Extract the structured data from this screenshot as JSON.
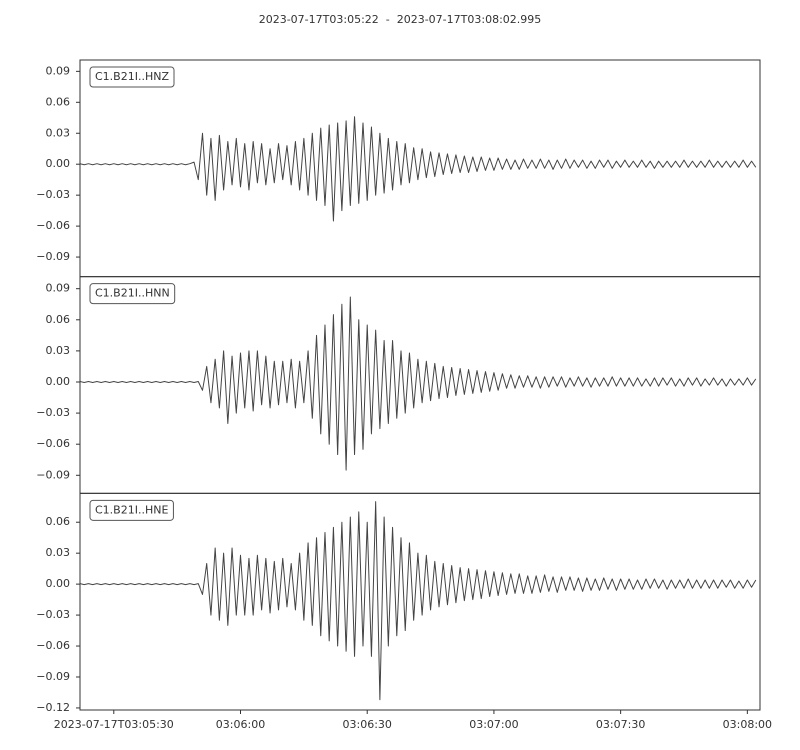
{
  "chart_data": [
    {
      "type": "line",
      "title": "2023-07-17T03:05:22  -  2023-07-17T03:08:02.995",
      "label": "C1.B21I..HNZ",
      "color": "#444444",
      "xlim": [
        0,
        160.995
      ],
      "ylim": [
        -0.109,
        0.101
      ],
      "yticks": [
        {
          "value": 0.09,
          "label": "0.09"
        },
        {
          "value": 0.06,
          "label": "0.06"
        },
        {
          "value": 0.03,
          "label": "0.03"
        },
        {
          "value": 0,
          "label": "0.00"
        },
        {
          "value": -0.03,
          "label": "−0.03"
        },
        {
          "value": -0.06,
          "label": "−0.06"
        },
        {
          "value": -0.09,
          "label": "−0.09"
        }
      ],
      "x": [
        0,
        1,
        2,
        3,
        4,
        5,
        6,
        7,
        8,
        9,
        10,
        11,
        12,
        13,
        14,
        15,
        16,
        17,
        18,
        19,
        20,
        21,
        22,
        23,
        24,
        25,
        26,
        27,
        28,
        29,
        30,
        31,
        32,
        33,
        34,
        35,
        36,
        37,
        38,
        39,
        40,
        41,
        42,
        43,
        44,
        45,
        46,
        47,
        48,
        49,
        50,
        51,
        52,
        53,
        54,
        55,
        56,
        57,
        58,
        59,
        60,
        61,
        62,
        63,
        64,
        65,
        66,
        67,
        68,
        69,
        70,
        71,
        72,
        73,
        74,
        75,
        76,
        77,
        78,
        79,
        80,
        81,
        82,
        83,
        84,
        85,
        86,
        87,
        88,
        89,
        90,
        91,
        92,
        93,
        94,
        95,
        96,
        97,
        98,
        99,
        100,
        101,
        102,
        103,
        104,
        105,
        106,
        107,
        108,
        109,
        110,
        111,
        112,
        113,
        114,
        115,
        116,
        117,
        118,
        119,
        120,
        121,
        122,
        123,
        124,
        125,
        126,
        127,
        128,
        129,
        130,
        131,
        132,
        133,
        134,
        135,
        136,
        137,
        138,
        139,
        140,
        141,
        142,
        143,
        144,
        145,
        146,
        147,
        148,
        149,
        150,
        151,
        152,
        153,
        154,
        155,
        156,
        157,
        158,
        159,
        160
      ],
      "values": [
        0.0005,
        -0.0005,
        0.0005,
        -0.0005,
        0.0005,
        -0.0005,
        0.0005,
        -0.0005,
        0.0005,
        -0.0005,
        0.0005,
        -0.0005,
        0.0005,
        -0.0005,
        0.0005,
        -0.0005,
        0.0005,
        -0.0005,
        0.0005,
        -0.0005,
        0.0005,
        -0.0005,
        0.0005,
        -0.0005,
        0.0005,
        -0.0005,
        0.0005,
        0.002,
        -0.015,
        0.03,
        -0.03,
        0.025,
        -0.035,
        0.028,
        -0.025,
        0.022,
        -0.02,
        0.025,
        -0.022,
        0.02,
        -0.025,
        0.022,
        -0.018,
        0.02,
        -0.02,
        0.015,
        -0.018,
        0.02,
        -0.015,
        0.018,
        -0.02,
        0.022,
        -0.025,
        0.025,
        -0.03,
        0.03,
        -0.035,
        0.035,
        -0.04,
        0.038,
        -0.055,
        0.04,
        -0.045,
        0.042,
        -0.04,
        0.046,
        -0.038,
        0.04,
        -0.035,
        0.036,
        -0.03,
        0.03,
        -0.028,
        0.025,
        -0.025,
        0.022,
        -0.02,
        0.02,
        -0.018,
        0.016,
        -0.015,
        0.015,
        -0.013,
        0.012,
        -0.012,
        0.011,
        -0.01,
        0.01,
        -0.009,
        0.009,
        -0.008,
        0.008,
        -0.008,
        0.007,
        -0.007,
        0.007,
        -0.006,
        0.006,
        -0.006,
        0.006,
        -0.005,
        0.005,
        -0.005,
        0.004,
        -0.005,
        0.005,
        -0.004,
        0.004,
        -0.004,
        0.005,
        -0.004,
        0.004,
        -0.005,
        0.004,
        -0.004,
        0.005,
        -0.004,
        0.004,
        -0.003,
        0.004,
        -0.004,
        0.003,
        -0.004,
        0.004,
        -0.003,
        0.004,
        -0.004,
        0.003,
        -0.003,
        0.004,
        -0.003,
        0.003,
        -0.003,
        0.004,
        -0.003,
        0.003,
        -0.004,
        0.003,
        -0.003,
        0.003,
        -0.003,
        0.003,
        -0.003,
        0.004,
        -0.003,
        0.003,
        -0.003,
        0.003,
        -0.003,
        0.004,
        -0.003,
        0.003,
        -0.003,
        0.003,
        -0.003,
        0.003,
        -0.003,
        0.004,
        -0.003,
        0.003,
        -0.003
      ]
    },
    {
      "type": "line",
      "label": "C1.B21I..HNN",
      "color": "#444444",
      "xlim": [
        0,
        160.995
      ],
      "ylim": [
        -0.1074,
        0.1016
      ],
      "yticks": [
        {
          "value": 0.09,
          "label": "0.09"
        },
        {
          "value": 0.06,
          "label": "0.06"
        },
        {
          "value": 0.03,
          "label": "0.03"
        },
        {
          "value": 0,
          "label": "0.00"
        },
        {
          "value": -0.03,
          "label": "−0.03"
        },
        {
          "value": -0.06,
          "label": "−0.06"
        },
        {
          "value": -0.09,
          "label": "−0.09"
        }
      ],
      "x": [
        0,
        1,
        2,
        3,
        4,
        5,
        6,
        7,
        8,
        9,
        10,
        11,
        12,
        13,
        14,
        15,
        16,
        17,
        18,
        19,
        20,
        21,
        22,
        23,
        24,
        25,
        26,
        27,
        28,
        29,
        30,
        31,
        32,
        33,
        34,
        35,
        36,
        37,
        38,
        39,
        40,
        41,
        42,
        43,
        44,
        45,
        46,
        47,
        48,
        49,
        50,
        51,
        52,
        53,
        54,
        55,
        56,
        57,
        58,
        59,
        60,
        61,
        62,
        63,
        64,
        65,
        66,
        67,
        68,
        69,
        70,
        71,
        72,
        73,
        74,
        75,
        76,
        77,
        78,
        79,
        80,
        81,
        82,
        83,
        84,
        85,
        86,
        87,
        88,
        89,
        90,
        91,
        92,
        93,
        94,
        95,
        96,
        97,
        98,
        99,
        100,
        101,
        102,
        103,
        104,
        105,
        106,
        107,
        108,
        109,
        110,
        111,
        112,
        113,
        114,
        115,
        116,
        117,
        118,
        119,
        120,
        121,
        122,
        123,
        124,
        125,
        126,
        127,
        128,
        129,
        130,
        131,
        132,
        133,
        134,
        135,
        136,
        137,
        138,
        139,
        140,
        141,
        142,
        143,
        144,
        145,
        146,
        147,
        148,
        149,
        150,
        151,
        152,
        153,
        154,
        155,
        156,
        157,
        158,
        159,
        160
      ],
      "values": [
        0.0005,
        -0.0005,
        0.0005,
        -0.0005,
        0.0005,
        -0.0005,
        0.0005,
        -0.0005,
        0.0005,
        -0.0005,
        0.0005,
        -0.0005,
        0.0005,
        -0.0005,
        0.0005,
        -0.0005,
        0.0005,
        -0.0005,
        0.0005,
        -0.0005,
        0.0005,
        -0.0005,
        0.0005,
        -0.0005,
        0.0005,
        -0.0005,
        0.0005,
        -0.0005,
        0.0005,
        -0.008,
        0.015,
        -0.02,
        0.022,
        -0.025,
        0.03,
        -0.04,
        0.025,
        -0.03,
        0.028,
        -0.025,
        0.03,
        -0.028,
        0.03,
        -0.022,
        0.025,
        -0.025,
        0.02,
        -0.022,
        0.02,
        -0.02,
        0.022,
        -0.025,
        0.02,
        -0.02,
        0.03,
        -0.035,
        0.045,
        -0.05,
        0.055,
        -0.06,
        0.065,
        -0.07,
        0.075,
        -0.085,
        0.082,
        -0.07,
        0.06,
        -0.065,
        0.055,
        -0.05,
        0.05,
        -0.045,
        0.04,
        -0.04,
        0.04,
        -0.035,
        0.03,
        -0.03,
        0.028,
        -0.025,
        0.022,
        -0.02,
        0.02,
        -0.018,
        0.018,
        -0.016,
        0.015,
        -0.015,
        0.014,
        -0.013,
        0.013,
        -0.012,
        0.012,
        -0.011,
        0.011,
        -0.01,
        0.01,
        -0.009,
        0.009,
        -0.008,
        0.008,
        -0.006,
        0.007,
        -0.006,
        0.006,
        -0.005,
        0.006,
        -0.005,
        0.005,
        -0.006,
        0.005,
        -0.005,
        0.005,
        -0.004,
        0.005,
        -0.005,
        0.004,
        -0.004,
        0.005,
        -0.004,
        0.004,
        -0.005,
        0.004,
        -0.004,
        0.004,
        -0.004,
        0.005,
        -0.004,
        0.004,
        -0.004,
        0.004,
        -0.004,
        0.004,
        -0.004,
        0.003,
        -0.004,
        0.004,
        -0.004,
        0.004,
        -0.003,
        0.004,
        -0.004,
        0.003,
        -0.004,
        0.004,
        -0.003,
        0.004,
        -0.004,
        0.003,
        -0.003,
        0.004,
        -0.003,
        0.003,
        -0.004,
        0.003,
        -0.003,
        0.003,
        -0.003,
        0.004,
        -0.003,
        0.003
      ]
    },
    {
      "type": "line",
      "label": "C1.B21I..HNE",
      "color": "#444444",
      "xlim": [
        0,
        160.995
      ],
      "ylim": [
        -0.122,
        0.088
      ],
      "yticks": [
        {
          "value": 0.06,
          "label": "0.06"
        },
        {
          "value": 0.03,
          "label": "0.03"
        },
        {
          "value": 0,
          "label": "0.00"
        },
        {
          "value": -0.03,
          "label": "−0.03"
        },
        {
          "value": -0.06,
          "label": "−0.06"
        },
        {
          "value": -0.09,
          "label": "−0.09"
        },
        {
          "value": -0.12,
          "label": "−0.12"
        }
      ],
      "xticks": [
        {
          "value": 8,
          "label": "2023-07-17T03:05:30"
        },
        {
          "value": 38,
          "label": "03:06:00"
        },
        {
          "value": 68,
          "label": "03:06:30"
        },
        {
          "value": 98,
          "label": "03:07:00"
        },
        {
          "value": 128,
          "label": "03:07:30"
        },
        {
          "value": 158,
          "label": "03:08:00"
        }
      ],
      "x": [
        0,
        1,
        2,
        3,
        4,
        5,
        6,
        7,
        8,
        9,
        10,
        11,
        12,
        13,
        14,
        15,
        16,
        17,
        18,
        19,
        20,
        21,
        22,
        23,
        24,
        25,
        26,
        27,
        28,
        29,
        30,
        31,
        32,
        33,
        34,
        35,
        36,
        37,
        38,
        39,
        40,
        41,
        42,
        43,
        44,
        45,
        46,
        47,
        48,
        49,
        50,
        51,
        52,
        53,
        54,
        55,
        56,
        57,
        58,
        59,
        60,
        61,
        62,
        63,
        64,
        65,
        66,
        67,
        68,
        69,
        70,
        71,
        72,
        73,
        74,
        75,
        76,
        77,
        78,
        79,
        80,
        81,
        82,
        83,
        84,
        85,
        86,
        87,
        88,
        89,
        90,
        91,
        92,
        93,
        94,
        95,
        96,
        97,
        98,
        99,
        100,
        101,
        102,
        103,
        104,
        105,
        106,
        107,
        108,
        109,
        110,
        111,
        112,
        113,
        114,
        115,
        116,
        117,
        118,
        119,
        120,
        121,
        122,
        123,
        124,
        125,
        126,
        127,
        128,
        129,
        130,
        131,
        132,
        133,
        134,
        135,
        136,
        137,
        138,
        139,
        140,
        141,
        142,
        143,
        144,
        145,
        146,
        147,
        148,
        149,
        150,
        151,
        152,
        153,
        154,
        155,
        156,
        157,
        158,
        159,
        160
      ],
      "values": [
        0.0005,
        -0.0005,
        0.0005,
        -0.0005,
        0.0005,
        -0.0005,
        0.0005,
        -0.0005,
        0.0005,
        -0.0005,
        0.0005,
        -0.0005,
        0.0005,
        -0.0005,
        0.0005,
        -0.0005,
        0.0005,
        -0.0005,
        0.0005,
        -0.0005,
        0.0005,
        -0.0005,
        0.0005,
        -0.0005,
        0.0005,
        -0.0005,
        0.0005,
        -0.0005,
        0.0005,
        -0.01,
        0.02,
        -0.03,
        0.035,
        -0.035,
        0.03,
        -0.04,
        0.035,
        -0.03,
        0.028,
        -0.03,
        0.025,
        -0.03,
        0.028,
        -0.025,
        0.025,
        -0.028,
        0.022,
        -0.025,
        0.025,
        -0.022,
        0.02,
        -0.025,
        0.03,
        -0.035,
        0.04,
        -0.04,
        0.045,
        -0.05,
        0.05,
        -0.055,
        0.055,
        -0.06,
        0.06,
        -0.065,
        0.065,
        -0.07,
        0.07,
        -0.06,
        0.06,
        -0.07,
        0.08,
        -0.112,
        0.065,
        -0.06,
        0.055,
        -0.05,
        0.045,
        -0.045,
        0.04,
        -0.035,
        0.03,
        -0.03,
        0.028,
        -0.025,
        0.022,
        -0.022,
        0.02,
        -0.02,
        0.018,
        -0.018,
        0.016,
        -0.016,
        0.015,
        -0.015,
        0.014,
        -0.014,
        0.013,
        -0.012,
        0.012,
        -0.011,
        0.011,
        -0.01,
        0.01,
        -0.009,
        0.01,
        -0.009,
        0.008,
        -0.009,
        0.008,
        -0.008,
        0.009,
        -0.007,
        0.007,
        -0.008,
        0.007,
        -0.006,
        0.007,
        -0.006,
        0.006,
        -0.007,
        0.006,
        -0.006,
        0.005,
        -0.006,
        0.006,
        -0.005,
        0.005,
        -0.006,
        0.005,
        -0.005,
        0.005,
        -0.005,
        0.004,
        -0.005,
        0.005,
        -0.004,
        0.005,
        -0.004,
        0.004,
        -0.005,
        0.004,
        -0.004,
        0.004,
        -0.004,
        0.005,
        -0.004,
        0.004,
        -0.004,
        0.004,
        -0.004,
        0.004,
        -0.004,
        0.004,
        -0.003,
        0.004,
        -0.004,
        0.003,
        -0.004,
        0.004,
        -0.003,
        0.004
      ]
    }
  ]
}
